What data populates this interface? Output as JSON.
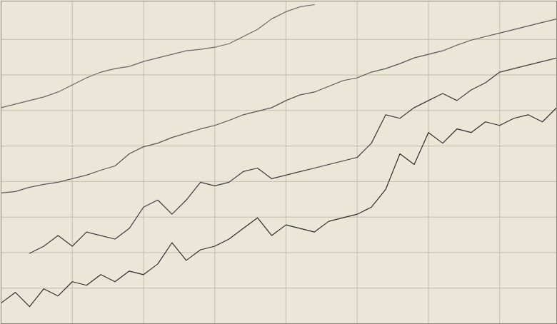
{
  "chart_data": {
    "type": "line",
    "x": [
      0,
      20,
      40,
      60,
      80,
      100,
      120,
      140,
      160,
      180,
      200,
      220,
      240,
      260,
      280,
      300,
      320,
      340,
      360,
      380,
      400,
      420,
      440,
      460,
      480,
      500,
      520,
      540,
      560,
      580,
      600,
      620,
      640,
      660,
      680,
      700,
      720,
      740,
      760,
      780
    ],
    "series": [
      {
        "color": "#2b2b2b",
        "values": [
          29,
          44,
          24,
          49,
          39,
          59,
          54,
          69,
          59,
          74,
          69,
          84,
          114,
          89,
          104,
          109,
          119,
          134,
          149,
          124,
          139,
          134,
          129,
          144,
          149,
          154,
          164,
          189,
          239,
          224,
          269,
          254,
          274,
          269,
          284,
          279,
          289,
          294,
          284,
          304
        ]
      },
      {
        "color": "#3a3a3a",
        "values": [
          null,
          null,
          99,
          109,
          124,
          109,
          129,
          124,
          119,
          134,
          164,
          174,
          154,
          174,
          199,
          194,
          199,
          214,
          219,
          204,
          209,
          214,
          219,
          224,
          229,
          234,
          254,
          294,
          289,
          304,
          314,
          324,
          314,
          329,
          339,
          354,
          359,
          364,
          369,
          374
        ]
      },
      {
        "color": "#555555",
        "values": [
          184,
          186,
          192,
          196,
          199,
          204,
          209,
          216,
          222,
          239,
          249,
          254,
          262,
          268,
          274,
          279,
          286,
          294,
          299,
          304,
          314,
          322,
          326,
          334,
          342,
          346,
          354,
          359,
          366,
          374,
          379,
          384,
          392,
          399,
          404,
          409,
          414,
          419,
          424,
          429
        ]
      },
      {
        "color": "#666666",
        "values": [
          304,
          309,
          314,
          319,
          326,
          336,
          346,
          354,
          359,
          362,
          369,
          374,
          379,
          384,
          386,
          389,
          394,
          404,
          414,
          429,
          439,
          446,
          449,
          null,
          null,
          null,
          null,
          null,
          null,
          null,
          null,
          null,
          null,
          null,
          null,
          null,
          null,
          null,
          null,
          null
        ]
      }
    ],
    "xlim": [
      0,
      780
    ],
    "ylim": [
      0,
      454
    ],
    "xticks": [
      100,
      200,
      300,
      400,
      500,
      600,
      700
    ],
    "yticks": [
      50,
      100,
      150,
      200,
      250,
      300,
      350,
      400
    ],
    "grid": true,
    "tick_labels": false
  }
}
